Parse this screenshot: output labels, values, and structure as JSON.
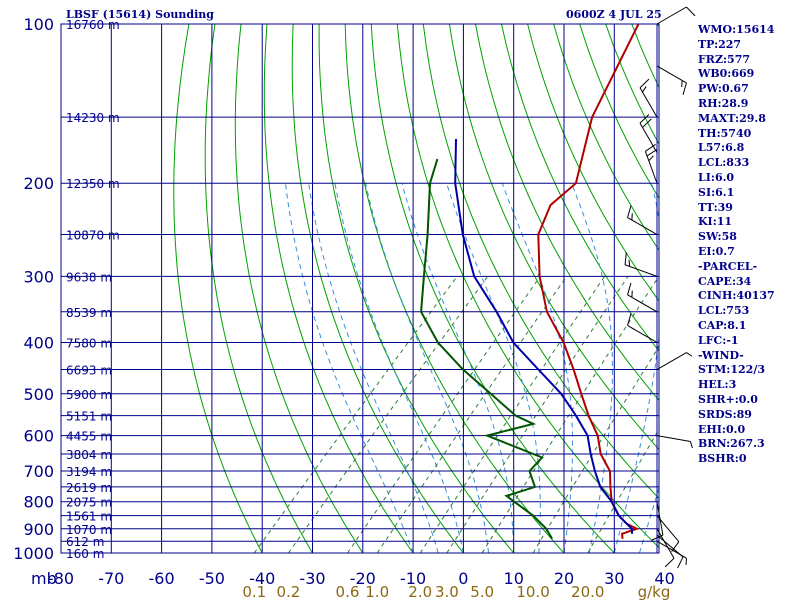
{
  "header": {
    "station_title": "LBSF (15614) Sounding",
    "valid_time": "0600Z  4 JUL 25"
  },
  "indices": [
    "WMO:15614",
    "TP:227",
    "FRZ:577",
    "WB0:669",
    "PW:0.67",
    "RH:28.9",
    "MAXT:29.8",
    "TH:5740",
    "L57:6.8",
    "LCL:833",
    "LI:6.0",
    "SI:6.1",
    "TT:39",
    "KI:11",
    "SW:58",
    "EI:0.7",
    "-PARCEL-",
    "CAPE:34",
    "CINH:40137",
    "LCL:753",
    "CAP:8.1",
    "LFC:-1",
    "-WIND-",
    "STM:122/3",
    "HEL:3",
    "SHR+:0.0",
    "SRDS:89",
    "EHI:0.0",
    "BRN:267.3",
    "BSHR:0"
  ],
  "colors": {
    "grid": "#00008b",
    "dry_adiabats": "#00a000",
    "mixing_ratio": "#2e7d32",
    "moist_adiabats": "#3a8fd8",
    "temperature": "#b00000",
    "dewpoint": "#005500",
    "parcel": "#0000aa",
    "axis_text": "#00008b",
    "mixing_text": "#8b6914",
    "wind_barbs": "#000000"
  },
  "chart_data": {
    "type": "line",
    "subtype": "skew-T log-P sounding",
    "title": "LBSF (15614) Sounding",
    "pressure_levels_mb": [
      100,
      200,
      300,
      400,
      500,
      600,
      700,
      800,
      900,
      1000
    ],
    "pressure_label": "mb",
    "temperature_ticks_c": [
      -80,
      -70,
      -60,
      -50,
      -40,
      -30,
      -20,
      -10,
      0,
      10,
      20,
      30,
      40
    ],
    "mixing_ratio_ticks": [
      "0.1",
      "0.2",
      "0.6",
      "1.0",
      "2.0",
      "3.0",
      "5.0",
      "10.0",
      "20.0"
    ],
    "mixing_ratio_unit": "g/kg",
    "height_labels": [
      {
        "p": 100,
        "text": "16760 m"
      },
      {
        "p": 150,
        "text": "14230 m"
      },
      {
        "p": 200,
        "text": "12350 m"
      },
      {
        "p": 250,
        "text": "10870 m"
      },
      {
        "p": 300,
        "text": "9638 m"
      },
      {
        "p": 350,
        "text": "8539 m"
      },
      {
        "p": 400,
        "text": "7580 m"
      },
      {
        "p": 450,
        "text": "6693 m"
      },
      {
        "p": 500,
        "text": "5900 m"
      },
      {
        "p": 550,
        "text": "5151 m"
      },
      {
        "p": 600,
        "text": "4455 m"
      },
      {
        "p": 650,
        "text": "3804 m"
      },
      {
        "p": 700,
        "text": "3194 m"
      },
      {
        "p": 750,
        "text": "2619 m"
      },
      {
        "p": 800,
        "text": "2075 m"
      },
      {
        "p": 850,
        "text": "1561 m"
      },
      {
        "p": 900,
        "text": "1070 m"
      },
      {
        "p": 950,
        "text": "612 m"
      },
      {
        "p": 1000,
        "text": "160 m"
      }
    ],
    "series": [
      {
        "name": "temperature",
        "points": [
          [
            100,
            -63
          ],
          [
            150,
            -55
          ],
          [
            200,
            -46
          ],
          [
            220,
            -47
          ],
          [
            250,
            -44
          ],
          [
            300,
            -36
          ],
          [
            350,
            -28
          ],
          [
            400,
            -19
          ],
          [
            450,
            -12
          ],
          [
            500,
            -6
          ],
          [
            550,
            -0.5
          ],
          [
            600,
            5
          ],
          [
            650,
            9
          ],
          [
            700,
            14
          ],
          [
            750,
            17
          ],
          [
            800,
            20
          ],
          [
            850,
            24
          ],
          [
            880,
            27
          ],
          [
            900,
            30
          ],
          [
            920,
            28
          ],
          [
            940,
            29
          ]
        ]
      },
      {
        "name": "dewpoint",
        "points": [
          [
            180,
            -78
          ],
          [
            200,
            -75
          ],
          [
            250,
            -66
          ],
          [
            300,
            -59
          ],
          [
            350,
            -53
          ],
          [
            400,
            -44
          ],
          [
            450,
            -34
          ],
          [
            500,
            -24
          ],
          [
            550,
            -15
          ],
          [
            570,
            -10
          ],
          [
            600,
            -17
          ],
          [
            660,
            -2
          ],
          [
            700,
            -2
          ],
          [
            750,
            2
          ],
          [
            780,
            -2
          ],
          [
            850,
            7
          ],
          [
            900,
            12
          ],
          [
            940,
            15
          ]
        ]
      },
      {
        "name": "parcel",
        "points": [
          [
            165,
            -78
          ],
          [
            200,
            -70
          ],
          [
            250,
            -59
          ],
          [
            300,
            -49
          ],
          [
            350,
            -38
          ],
          [
            400,
            -29
          ],
          [
            450,
            -19
          ],
          [
            500,
            -10
          ],
          [
            550,
            -3
          ],
          [
            600,
            3
          ],
          [
            650,
            7
          ],
          [
            700,
            11
          ],
          [
            750,
            15
          ],
          [
            800,
            20
          ],
          [
            850,
            24
          ],
          [
            900,
            29
          ],
          [
            920,
            30
          ]
        ]
      }
    ],
    "wind_barbs": [
      {
        "p": 100,
        "dir": 60,
        "spd": 10
      },
      {
        "p": 120,
        "dir": 120,
        "spd": 15
      },
      {
        "p": 150,
        "dir": 330,
        "spd": 15
      },
      {
        "p": 175,
        "dir": 330,
        "spd": 20
      },
      {
        "p": 200,
        "dir": 340,
        "spd": 25
      },
      {
        "p": 250,
        "dir": 300,
        "spd": 15
      },
      {
        "p": 300,
        "dir": 290,
        "spd": 15
      },
      {
        "p": 350,
        "dir": 300,
        "spd": 15
      },
      {
        "p": 400,
        "dir": 300,
        "spd": 10
      },
      {
        "p": 450,
        "dir": 60,
        "spd": 5
      },
      {
        "p": 600,
        "dir": 100,
        "spd": 5
      },
      {
        "p": 800,
        "dir": 170,
        "spd": 10
      },
      {
        "p": 850,
        "dir": 140,
        "spd": 10
      },
      {
        "p": 900,
        "dir": 150,
        "spd": 10
      },
      {
        "p": 925,
        "dir": 130,
        "spd": 10
      },
      {
        "p": 950,
        "dir": 120,
        "spd": 5
      }
    ],
    "grid": true,
    "legend": "none"
  }
}
